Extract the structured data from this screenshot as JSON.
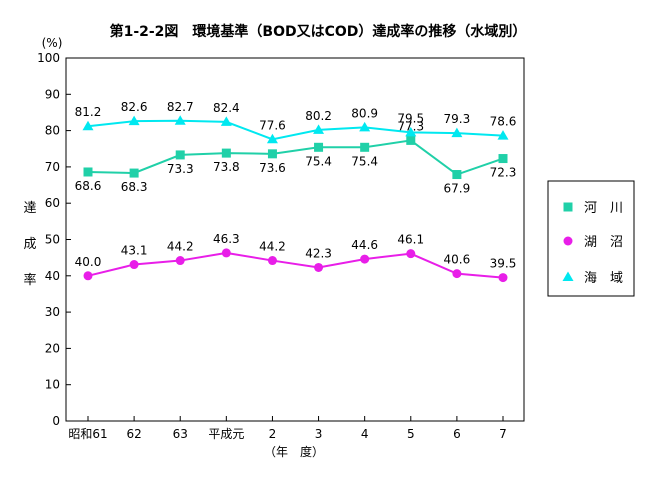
{
  "chart_data": {
    "type": "line",
    "title": "第1-2-2図　環境基準（BOD又はCOD）達成率の推移（水域別）",
    "yunit": "(%)",
    "ylabel": "達成率",
    "xlabel": "（年　度）",
    "ylim": [
      0,
      100
    ],
    "yticks": [
      0,
      10,
      20,
      30,
      40,
      50,
      60,
      70,
      80,
      90,
      100
    ],
    "grid": false,
    "legend_position": "right",
    "categories": [
      "昭和61",
      "62",
      "63",
      "平成元",
      "2",
      "3",
      "4",
      "5",
      "6",
      "7"
    ],
    "series": [
      {
        "name": "河川",
        "legend_label": "河　川",
        "marker": "square",
        "color": "#20d0a8",
        "values": [
          68.6,
          68.3,
          73.3,
          73.8,
          73.6,
          75.4,
          75.4,
          77.3,
          67.9,
          72.3
        ],
        "labels": [
          "68.6",
          "68.3",
          "73.3",
          "73.8",
          "73.6",
          "75.4",
          "75.4",
          "77.3",
          "67.9",
          "72.3"
        ]
      },
      {
        "name": "湖沼",
        "legend_label": "湖　沼",
        "marker": "circle",
        "color": "#e81ee8",
        "values": [
          40.0,
          43.1,
          44.2,
          46.3,
          44.2,
          42.3,
          44.6,
          46.1,
          40.6,
          39.5
        ],
        "labels": [
          "40.0",
          "43.1",
          "44.2",
          "46.3",
          "44.2",
          "42.3",
          "44.6",
          "46.1",
          "40.6",
          "39.5"
        ]
      },
      {
        "name": "海域",
        "legend_label": "海　域",
        "marker": "triangle",
        "color": "#00e8f0",
        "values": [
          81.2,
          82.6,
          82.7,
          82.4,
          77.6,
          80.2,
          80.9,
          79.5,
          79.3,
          78.6
        ],
        "labels": [
          "81.2",
          "82.6",
          "82.7",
          "82.4",
          "77.6",
          "80.2",
          "80.9",
          "79.5",
          "79.3",
          "78.6"
        ]
      }
    ]
  }
}
